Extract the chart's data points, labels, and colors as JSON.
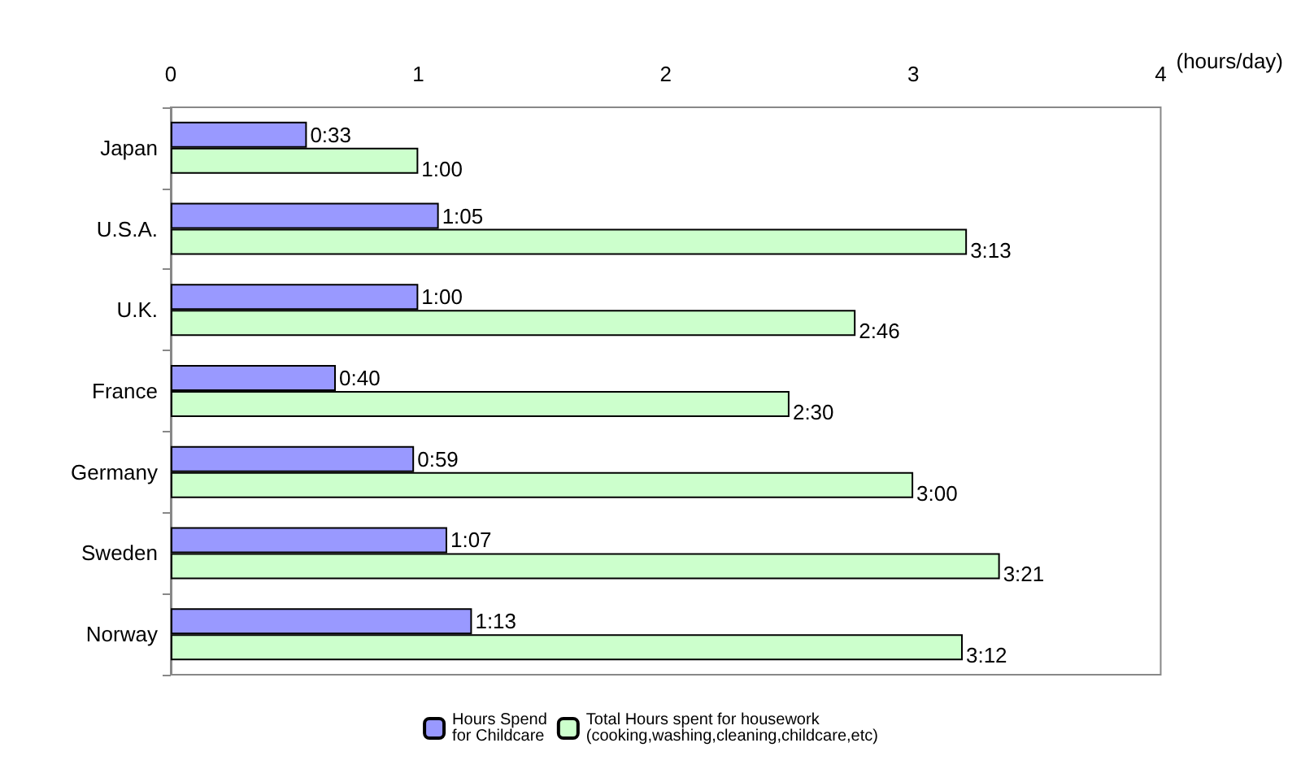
{
  "chart_data": {
    "type": "bar",
    "orientation": "horizontal",
    "xlabel": "(hours/day)",
    "categories": [
      "Japan",
      "U.S.A.",
      "U.K.",
      "France",
      "Germany",
      "Sweden",
      "Norway"
    ],
    "series": [
      {
        "name": "Hours Spend\nfor Childcare",
        "color": "#9999ff",
        "values": [
          0.55,
          1.083,
          1,
          0.667,
          0.983,
          1.117,
          1.217
        ],
        "value_labels": [
          "0:33",
          "1:05",
          "1:00",
          "0:40",
          "0:59",
          "1:07",
          "1:13"
        ]
      },
      {
        "name": "Total Hours spent for housework\n(cooking,washing,cleaning,childcare,etc)",
        "color": "#ccffcc",
        "values": [
          1,
          3.217,
          2.767,
          2.5,
          3,
          3.35,
          3.2
        ],
        "value_labels": [
          "1:00",
          "3:13",
          "2:46",
          "2:30",
          "3:00",
          "3:21",
          "3:12"
        ]
      }
    ],
    "xlim": [
      0,
      4
    ],
    "xticks": [
      0,
      1,
      2,
      3,
      4
    ],
    "grid": false,
    "legend": "bottom"
  }
}
